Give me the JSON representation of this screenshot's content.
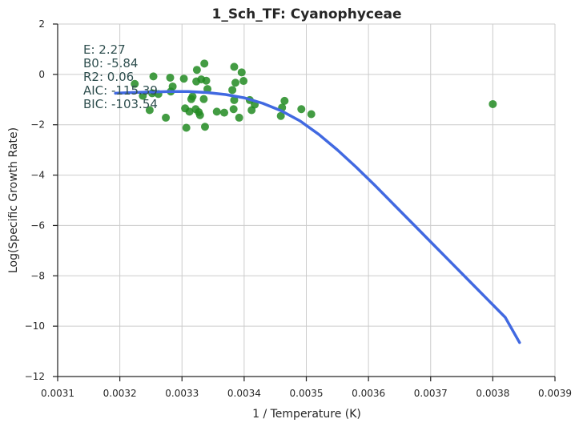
{
  "chart_data": {
    "type": "scatter",
    "title": "1_Sch_TF: Cyanophyceae",
    "xlabel": "1 / Temperature (K)",
    "ylabel": "Log(Specific Growth Rate)",
    "xlim": [
      0.0031,
      0.0039
    ],
    "ylim": [
      -12,
      2
    ],
    "xticks": [
      0.0031,
      0.0032,
      0.0033,
      0.0034,
      0.0035,
      0.0036,
      0.0037,
      0.0038,
      0.0039
    ],
    "xtick_labels": [
      "0.0031",
      "0.0032",
      "0.0033",
      "0.0034",
      "0.0035",
      "0.0036",
      "0.0037",
      "0.0038",
      "0.0039"
    ],
    "yticks": [
      2,
      0,
      -2,
      -4,
      -6,
      -8,
      -10,
      -12
    ],
    "ytick_labels": [
      "2",
      "0",
      "−2",
      "−4",
      "−6",
      "−8",
      "−10",
      "−12"
    ],
    "grid": true,
    "annotations": [
      "E:  2.27",
      "B0:  -5.84",
      "R2:  0.06",
      "AIC:  -115.39",
      "BIC: -103.54"
    ],
    "series": [
      {
        "type": "scatter",
        "color": "#228b22",
        "points": [
          [
            0.003224,
            -0.38
          ],
          [
            0.003237,
            -0.85
          ],
          [
            0.003248,
            -1.42
          ],
          [
            0.003254,
            -0.08
          ],
          [
            0.003252,
            -0.75
          ],
          [
            0.003262,
            -0.78
          ],
          [
            0.003274,
            -1.72
          ],
          [
            0.003281,
            -0.13
          ],
          [
            0.003285,
            -0.48
          ],
          [
            0.003282,
            -0.68
          ],
          [
            0.003303,
            -0.17
          ],
          [
            0.003305,
            -1.35
          ],
          [
            0.003307,
            -2.12
          ],
          [
            0.003312,
            -1.48
          ],
          [
            0.003315,
            -0.98
          ],
          [
            0.003317,
            -0.88
          ],
          [
            0.003322,
            -1.38
          ],
          [
            0.003324,
            0.18
          ],
          [
            0.003323,
            -0.28
          ],
          [
            0.003327,
            -1.5
          ],
          [
            0.003329,
            -1.62
          ],
          [
            0.003331,
            -0.2
          ],
          [
            0.003335,
            -0.98
          ],
          [
            0.003336,
            0.43
          ],
          [
            0.003337,
            -2.08
          ],
          [
            0.003339,
            -0.25
          ],
          [
            0.003341,
            -0.58
          ],
          [
            0.003356,
            -1.48
          ],
          [
            0.003368,
            -1.52
          ],
          [
            0.003381,
            -0.62
          ],
          [
            0.003383,
            -1.38
          ],
          [
            0.003384,
            -1.02
          ],
          [
            0.003384,
            0.3
          ],
          [
            0.003386,
            -0.33
          ],
          [
            0.003392,
            -1.72
          ],
          [
            0.003396,
            0.08
          ],
          [
            0.003399,
            -0.26
          ],
          [
            0.003409,
            -1.02
          ],
          [
            0.003412,
            -1.42
          ],
          [
            0.003417,
            -1.2
          ],
          [
            0.003459,
            -1.65
          ],
          [
            0.003461,
            -1.32
          ],
          [
            0.003465,
            -1.05
          ],
          [
            0.003492,
            -1.38
          ],
          [
            0.003508,
            -1.58
          ],
          [
            0.0038,
            -1.18
          ]
        ]
      },
      {
        "type": "line",
        "color": "#4169e1",
        "points": [
          [
            0.003193,
            -0.75
          ],
          [
            0.00322,
            -0.72
          ],
          [
            0.00325,
            -0.7
          ],
          [
            0.00328,
            -0.68
          ],
          [
            0.00331,
            -0.68
          ],
          [
            0.00334,
            -0.72
          ],
          [
            0.00337,
            -0.8
          ],
          [
            0.0034,
            -0.93
          ],
          [
            0.00343,
            -1.15
          ],
          [
            0.00346,
            -1.45
          ],
          [
            0.00349,
            -1.85
          ],
          [
            0.00352,
            -2.38
          ],
          [
            0.00355,
            -3.0
          ],
          [
            0.00358,
            -3.68
          ],
          [
            0.00361,
            -4.4
          ],
          [
            0.00364,
            -5.15
          ],
          [
            0.00367,
            -5.9
          ],
          [
            0.0037,
            -6.65
          ],
          [
            0.00373,
            -7.4
          ],
          [
            0.00376,
            -8.15
          ],
          [
            0.00379,
            -8.9
          ],
          [
            0.00382,
            -9.65
          ],
          [
            0.003843,
            -10.65
          ]
        ]
      }
    ]
  }
}
